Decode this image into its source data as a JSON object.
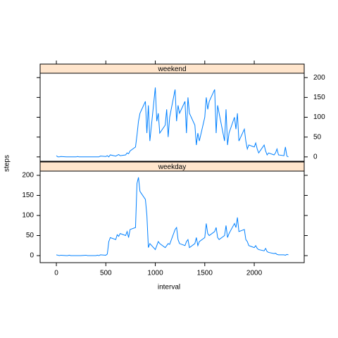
{
  "chart_data": [
    {
      "type": "line",
      "strip": "weekend",
      "color": "#0080ff",
      "x": [
        0,
        15,
        30,
        45,
        100,
        115,
        130,
        145,
        200,
        215,
        230,
        245,
        300,
        315,
        330,
        345,
        400,
        415,
        430,
        445,
        500,
        515,
        530,
        545,
        600,
        615,
        630,
        645,
        700,
        715,
        730,
        745,
        800,
        815,
        830,
        845,
        900,
        915,
        930,
        945,
        1000,
        1015,
        1030,
        1045,
        1100,
        1115,
        1130,
        1145,
        1200,
        1215,
        1230,
        1245,
        1300,
        1315,
        1330,
        1345,
        1400,
        1415,
        1430,
        1445,
        1500,
        1515,
        1530,
        1545,
        1600,
        1615,
        1630,
        1645,
        1700,
        1715,
        1730,
        1745,
        1800,
        1815,
        1830,
        1845,
        1900,
        1915,
        1930,
        1945,
        2000,
        2015,
        2030,
        2045,
        2100,
        2115,
        2130,
        2145,
        2200,
        2215,
        2230,
        2245,
        2300,
        2315,
        2330,
        2345
      ],
      "values": [
        3,
        0,
        0,
        1,
        0,
        0,
        0,
        0,
        0,
        1,
        0,
        0,
        0,
        0,
        0,
        0,
        0,
        0,
        0,
        2,
        1,
        3,
        0,
        5,
        2,
        4,
        6,
        3,
        5,
        10,
        8,
        15,
        25,
        55,
        90,
        110,
        140,
        60,
        130,
        40,
        175,
        90,
        110,
        60,
        80,
        120,
        50,
        100,
        170,
        90,
        130,
        110,
        140,
        60,
        150,
        110,
        80,
        30,
        60,
        40,
        100,
        150,
        120,
        140,
        170,
        60,
        130,
        110,
        40,
        120,
        30,
        60,
        100,
        70,
        110,
        40,
        70,
        40,
        20,
        30,
        25,
        35,
        20,
        10,
        30,
        15,
        5,
        10,
        5,
        10,
        20,
        5,
        3,
        25,
        2,
        0
      ],
      "xlim": [
        -164,
        2505
      ],
      "xticks": [
        0,
        500,
        1000,
        1500,
        2000
      ],
      "ylim": [
        -11,
        211
      ],
      "yticks": [
        0,
        50,
        100,
        150,
        200
      ]
    },
    {
      "type": "line",
      "strip": "weekday",
      "color": "#0080ff",
      "xlabel": "interval",
      "ylabel": "steps",
      "x": [
        0,
        15,
        30,
        45,
        100,
        115,
        130,
        145,
        200,
        215,
        230,
        245,
        300,
        315,
        330,
        345,
        400,
        415,
        430,
        445,
        500,
        515,
        530,
        545,
        600,
        615,
        630,
        645,
        700,
        715,
        730,
        745,
        800,
        815,
        830,
        845,
        900,
        915,
        930,
        945,
        1000,
        1015,
        1030,
        1045,
        1100,
        1115,
        1130,
        1145,
        1200,
        1215,
        1230,
        1245,
        1300,
        1315,
        1330,
        1345,
        1400,
        1415,
        1430,
        1445,
        1500,
        1515,
        1530,
        1545,
        1600,
        1615,
        1630,
        1645,
        1700,
        1715,
        1730,
        1745,
        1800,
        1815,
        1830,
        1845,
        1900,
        1915,
        1930,
        1945,
        2000,
        2015,
        2030,
        2045,
        2100,
        2115,
        2130,
        2145,
        2200,
        2215,
        2230,
        2245,
        2300,
        2315,
        2330,
        2345
      ],
      "values": [
        2,
        1,
        0,
        1,
        0,
        0,
        1,
        0,
        0,
        0,
        0,
        0,
        1,
        0,
        0,
        0,
        0,
        1,
        0,
        2,
        1,
        4,
        35,
        45,
        40,
        52,
        48,
        55,
        50,
        60,
        45,
        65,
        70,
        180,
        195,
        160,
        140,
        100,
        20,
        30,
        15,
        25,
        35,
        30,
        20,
        25,
        30,
        28,
        65,
        70,
        40,
        30,
        25,
        35,
        40,
        20,
        30,
        45,
        25,
        35,
        45,
        80,
        55,
        50,
        60,
        70,
        45,
        40,
        50,
        75,
        45,
        55,
        80,
        70,
        95,
        60,
        65,
        40,
        35,
        25,
        20,
        25,
        18,
        15,
        12,
        18,
        10,
        8,
        5,
        6,
        3,
        2,
        2,
        1,
        3,
        2
      ],
      "xlim": [
        -164,
        2505
      ],
      "xticks": [
        0,
        500,
        1000,
        1500,
        2000
      ],
      "ylim": [
        -17.5,
        210.5
      ],
      "yticks": [
        0,
        50,
        100,
        150,
        200
      ]
    }
  ]
}
